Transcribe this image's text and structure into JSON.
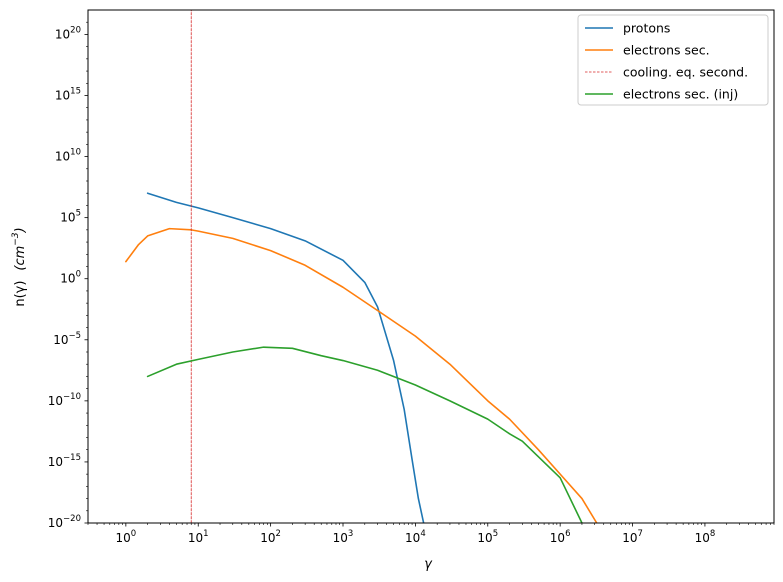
{
  "chart_data": {
    "type": "line",
    "x_scale": "log",
    "y_scale": "log",
    "xlim": [
      0.3,
      900000000
    ],
    "ylim": [
      1e-20,
      1e+22
    ],
    "grid": false,
    "legend_placement": "top-right",
    "xlabel": "γ",
    "ylabel_main": "n(γ)",
    "ylabel_unit_base": "cm",
    "ylabel_unit_exp": "−3",
    "x_ticks": [
      {
        "value": 1,
        "base": "10",
        "exp": "0"
      },
      {
        "value": 10,
        "base": "10",
        "exp": "1"
      },
      {
        "value": 100,
        "base": "10",
        "exp": "2"
      },
      {
        "value": 1000,
        "base": "10",
        "exp": "3"
      },
      {
        "value": 10000,
        "base": "10",
        "exp": "4"
      },
      {
        "value": 100000,
        "base": "10",
        "exp": "5"
      },
      {
        "value": 1000000,
        "base": "10",
        "exp": "6"
      },
      {
        "value": 10000000,
        "base": "10",
        "exp": "7"
      },
      {
        "value": 100000000,
        "base": "10",
        "exp": "8"
      }
    ],
    "y_ticks": [
      {
        "value": 1e-20,
        "base": "10",
        "exp": "−20"
      },
      {
        "value": 1e-15,
        "base": "10",
        "exp": "−15"
      },
      {
        "value": 1e-10,
        "base": "10",
        "exp": "−10"
      },
      {
        "value": 1e-05,
        "base": "10",
        "exp": "−5"
      },
      {
        "value": 1,
        "base": "10",
        "exp": "0"
      },
      {
        "value": 100000.0,
        "base": "10",
        "exp": "5"
      },
      {
        "value": 10000000000.0,
        "base": "10",
        "exp": "10"
      },
      {
        "value": 1000000000000000.0,
        "base": "10",
        "exp": "15"
      },
      {
        "value": 1e+20,
        "base": "10",
        "exp": "20"
      }
    ],
    "series": [
      {
        "name": "protons",
        "color": "#1f77b4",
        "style": "solid",
        "x": [
          2,
          5,
          10,
          30,
          100,
          300,
          1000,
          2000,
          3000,
          5000,
          7000,
          9000,
          11000,
          13000
        ],
        "y": [
          10000000.0,
          1780000.0,
          630000.0,
          100000.0,
          12600.0,
          1260.0,
          32.0,
          0.5,
          0.005,
          2e-07,
          2e-11,
          1.6e-15,
          1e-18,
          1e-20
        ]
      },
      {
        "name": "electrons sec.",
        "color": "#ff7f0e",
        "style": "solid",
        "x": [
          1,
          1.5,
          2,
          4,
          8,
          10,
          30,
          100,
          300,
          1000,
          3000,
          10000,
          30000,
          100000,
          200000,
          500000,
          1000000,
          2000000,
          3200000
        ],
        "y": [
          25,
          630,
          3200,
          12600.0,
          10000.0,
          7900.0,
          2000.0,
          200.0,
          12.6,
          0.2,
          0.0025,
          2e-05,
          1e-07,
          1e-10,
          3.2e-12,
          1e-14,
          1e-16,
          1e-18,
          1e-20
        ]
      },
      {
        "name": "cooling. eq. second.",
        "color": "#d62728",
        "style": "dashed",
        "x": [
          8,
          8
        ],
        "y": [
          1e-20,
          1e+22
        ]
      },
      {
        "name": "electrons sec. (inj)",
        "color": "#2ca02c",
        "style": "solid",
        "x": [
          2,
          5,
          10,
          30,
          80,
          200,
          500,
          1000,
          3000,
          10000,
          30000,
          100000,
          200000,
          300000,
          1000000,
          2000000
        ],
        "y": [
          1e-08,
          1e-07,
          2.5e-07,
          1e-06,
          2.5e-06,
          2e-06,
          5e-07,
          2e-07,
          3.2e-08,
          2e-09,
          1e-10,
          3.2e-12,
          2e-13,
          5e-14,
          5e-17,
          1e-20
        ]
      }
    ]
  }
}
